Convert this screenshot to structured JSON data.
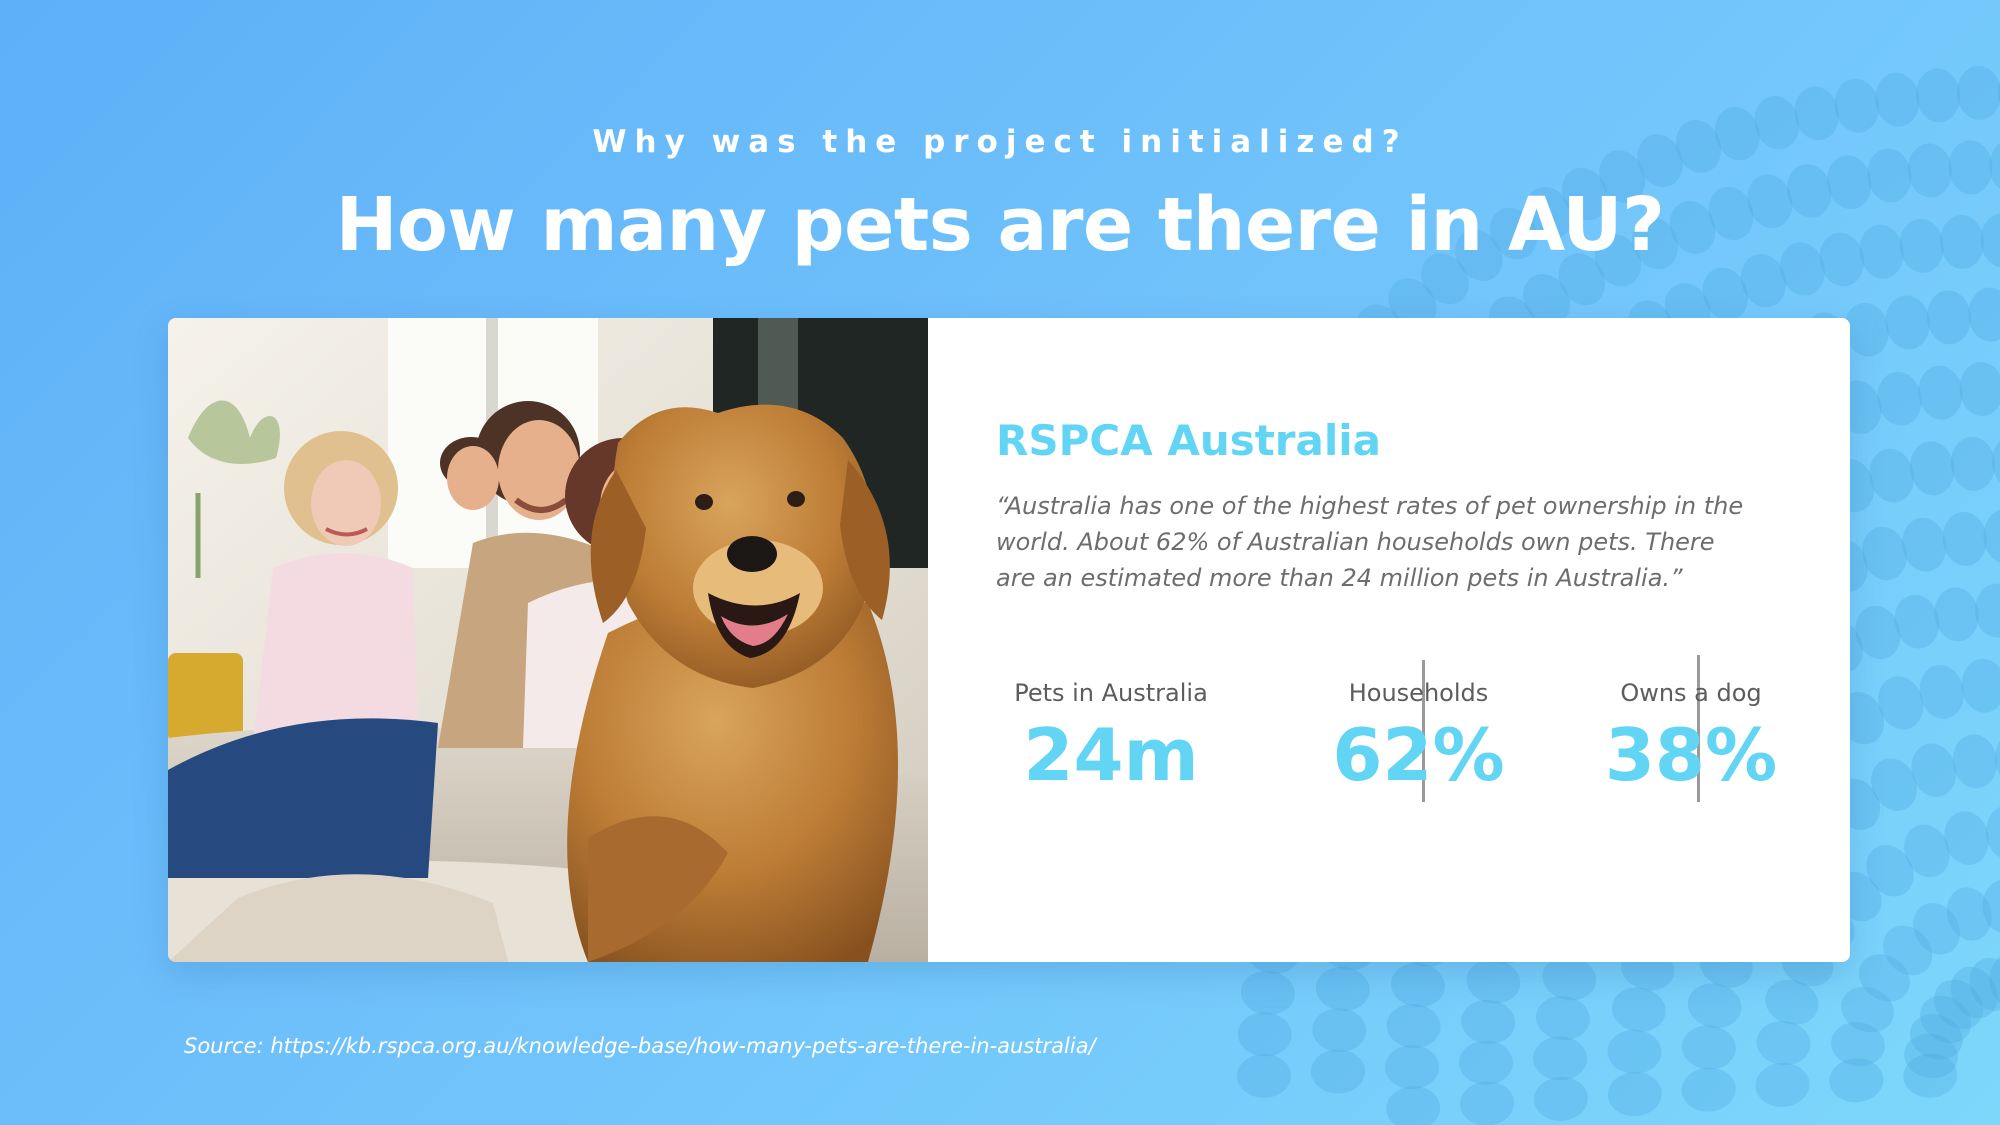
{
  "header": {
    "subtitle": "Why was the project initialized?",
    "title": "How many pets are there in AU?"
  },
  "card": {
    "organization": "RSPCA Australia",
    "quote": "“Australia has one of the highest rates of pet ownership in the world. About 62% of Australian households own pets. There are an estimated more than 24 million pets in Australia.”",
    "stats": [
      {
        "label": "Pets in Australia",
        "value": "24m"
      },
      {
        "label": "Households",
        "value": "62%"
      },
      {
        "label": "Owns a dog",
        "value": "38%"
      }
    ]
  },
  "footer": {
    "source": "Source: https://kb.rspca.org.au/knowledge-base/how-many-pets-are-there-in-australia/"
  },
  "colors": {
    "accent": "#61d5f3",
    "background_start": "#5eb0f8",
    "background_end": "#7dd7fb"
  }
}
